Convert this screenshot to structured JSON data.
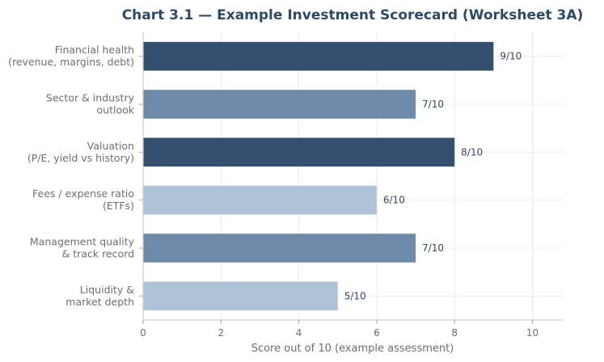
{
  "chart_data": {
    "type": "bar",
    "orientation": "horizontal",
    "title": "Chart 3.1 — Example Investment Scorecard (Worksheet 3A)",
    "xlabel": "Score out of 10 (example assessment)",
    "ylabel": "",
    "xlim": [
      0,
      10.8
    ],
    "xticks": [
      0,
      2,
      4,
      6,
      8,
      10
    ],
    "grid": true,
    "categories": [
      [
        "Financial health",
        "(revenue, margins, debt)"
      ],
      [
        "Sector & industry",
        "outlook"
      ],
      [
        "Valuation",
        "(P/E, yield vs history)"
      ],
      [
        "Fees / expense ratio",
        "(ETFs)"
      ],
      [
        "Management quality",
        "& track record"
      ],
      [
        "Liquidity &",
        "market depth"
      ]
    ],
    "values": [
      9,
      7,
      8,
      6,
      7,
      5
    ],
    "data_labels": [
      "9/10",
      "7/10",
      "8/10",
      "6/10",
      "7/10",
      "5/10"
    ],
    "colors": [
      "#34506e",
      "#6e8aa8",
      "#34506e",
      "#aec3d7",
      "#6e8aa8",
      "#aec3d7"
    ]
  }
}
